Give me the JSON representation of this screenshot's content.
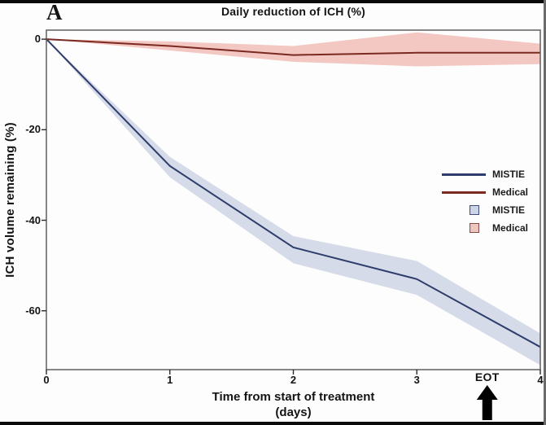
{
  "figure": {
    "panel_label": "A",
    "title": "Daily reduction of ICH (%)"
  },
  "x_axis": {
    "label_line1": "Time from start of treatment",
    "label_line2": "(days)",
    "ticks": [
      "0",
      "1",
      "2",
      "3",
      "4"
    ]
  },
  "y_axis": {
    "label": "ICH volume remaining (%)",
    "ticks": [
      "0",
      "-20",
      "-40",
      "-60"
    ]
  },
  "annotation": {
    "eot_label": "EOT",
    "eot_x": 3.57,
    "arrow_icon": "up-arrow"
  },
  "legend": {
    "items": [
      {
        "swatch": "line",
        "label": "MISTIE",
        "color": "#2e3d6b"
      },
      {
        "swatch": "line",
        "label": "Medical",
        "color": "#7b2a22"
      },
      {
        "swatch": "square",
        "label": "MISTIE",
        "color": "#cdd4e6",
        "border": "#3f4c79"
      },
      {
        "swatch": "square",
        "label": "Medical",
        "color": "#edc6c0",
        "border": "#8a4a42"
      }
    ]
  },
  "colors": {
    "frame": "#5f5f5f",
    "tick": "#2a2a2a",
    "arrow": "#000000",
    "background": "#fdfdfd"
  },
  "chart_data": {
    "type": "line",
    "title": "Daily reduction of ICH (%)",
    "xlabel": "Time from start of treatment (days)",
    "ylabel": "ICH volume remaining (%)",
    "x": [
      0,
      1,
      2,
      3,
      4
    ],
    "xlim": [
      0,
      4
    ],
    "ylim": [
      2,
      -73
    ],
    "grid": false,
    "legend_position": "right",
    "series": [
      {
        "name": "MISTIE",
        "color": "#2e3d6b",
        "band_color": "#d6dbe9",
        "values": [
          0,
          -28,
          -46,
          -53,
          -68
        ],
        "ci_upper": [
          0,
          -26,
          -43.5,
          -49,
          -65
        ],
        "ci_lower": [
          0,
          -30.5,
          -49.5,
          -56.5,
          -72
        ]
      },
      {
        "name": "Medical",
        "color": "#7b2a22",
        "band_color": "#f3c8c2",
        "values": [
          0,
          -1.5,
          -3.5,
          -3,
          -3
        ],
        "ci_upper": [
          0,
          -0.5,
          -1.5,
          1.5,
          -1
        ],
        "ci_lower": [
          0,
          -2.5,
          -5,
          -6,
          -5.5
        ]
      }
    ],
    "annotations": [
      {
        "text": "EOT",
        "x": 3.57,
        "arrow": "up"
      }
    ]
  }
}
